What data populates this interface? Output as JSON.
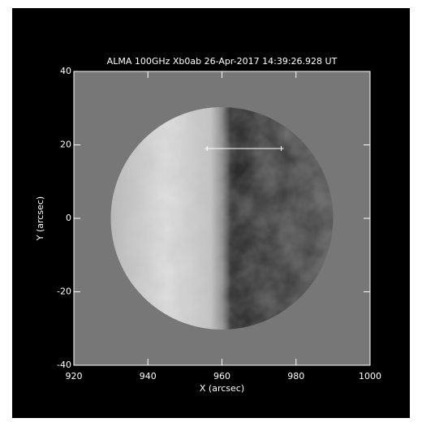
{
  "chart_data": {
    "type": "image",
    "title": "ALMA 100GHz Xb0ab 26-Apr-2017 14:39:26.928 UT",
    "xlabel": "X (arcsec)",
    "ylabel": "Y (arcsec)",
    "xlim": [
      920,
      1000
    ],
    "ylim": [
      -40,
      40
    ],
    "xticks": [
      920,
      940,
      960,
      980,
      1000
    ],
    "yticks": [
      -40,
      -20,
      0,
      20,
      40
    ],
    "segment": {
      "x": [
        956,
        976
      ],
      "y": [
        19,
        19
      ],
      "color": "#ffffff"
    }
  }
}
